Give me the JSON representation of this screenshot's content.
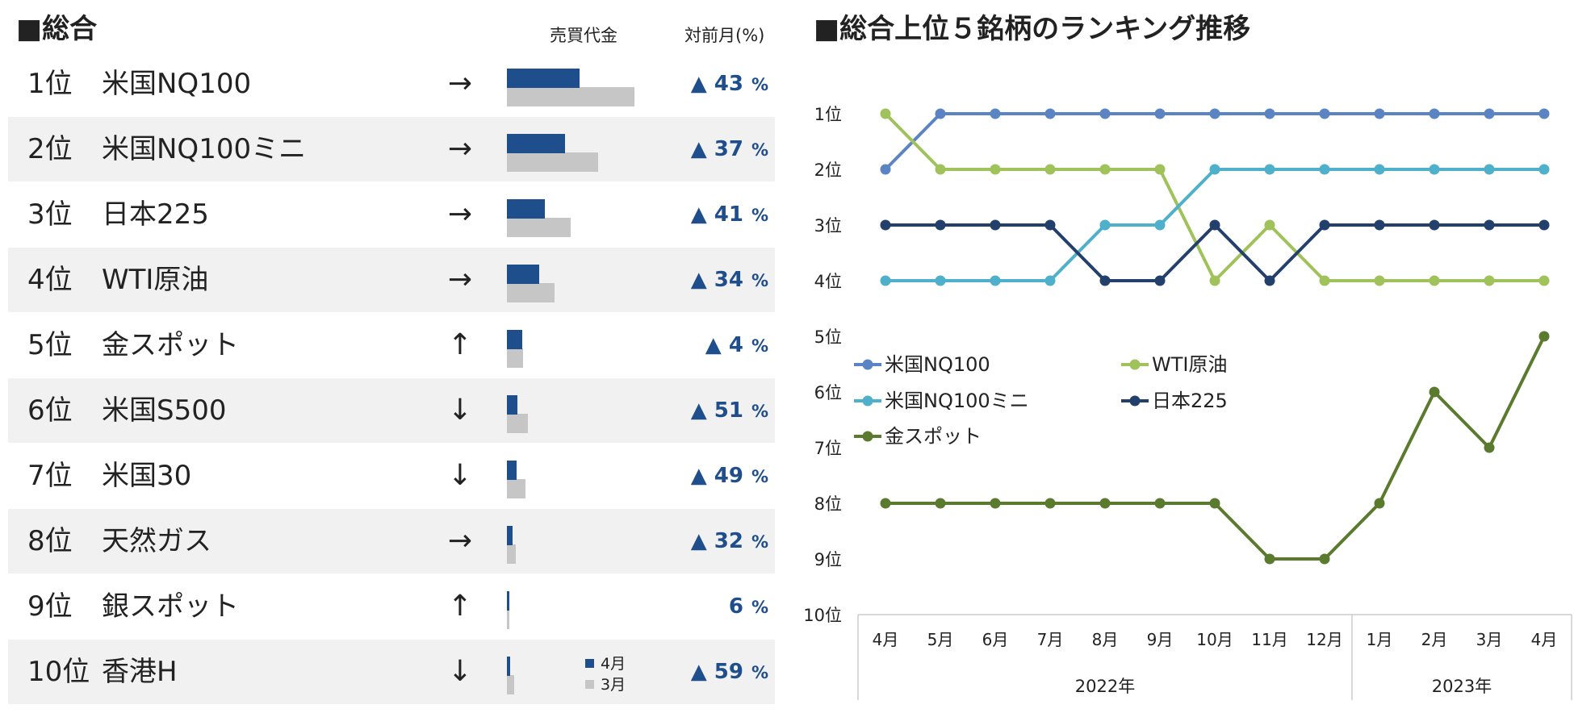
{
  "left_title": "■総合",
  "headers": {
    "amount": "売買代金",
    "change": "対前月(%)"
  },
  "legend_small": {
    "apr": "4月",
    "mar": "3月"
  },
  "ranking": [
    {
      "rank": "1位",
      "name": "米国NQ100",
      "arrow": "→",
      "apr": 1.0,
      "mar": 1.75,
      "up": "▲",
      "change": "43",
      "unit": "%"
    },
    {
      "rank": "2位",
      "name": "米国NQ100ミニ",
      "arrow": "→",
      "apr": 0.8,
      "mar": 1.26,
      "up": "▲",
      "change": "37",
      "unit": "%"
    },
    {
      "rank": "3位",
      "name": "日本225",
      "arrow": "→",
      "apr": 0.52,
      "mar": 0.88,
      "up": "▲",
      "change": "41",
      "unit": "%"
    },
    {
      "rank": "4位",
      "name": "WTI原油",
      "arrow": "→",
      "apr": 0.44,
      "mar": 0.66,
      "up": "▲",
      "change": "34",
      "unit": "%"
    },
    {
      "rank": "5位",
      "name": "金スポット",
      "arrow": "↑",
      "apr": 0.21,
      "mar": 0.22,
      "up": "▲",
      "change": "4",
      "unit": "%"
    },
    {
      "rank": "6位",
      "name": "米国S500",
      "arrow": "↓",
      "apr": 0.14,
      "mar": 0.29,
      "up": "▲",
      "change": "51",
      "unit": "%"
    },
    {
      "rank": "7位",
      "name": "米国30",
      "arrow": "↓",
      "apr": 0.13,
      "mar": 0.25,
      "up": "▲",
      "change": "49",
      "unit": "%"
    },
    {
      "rank": "8位",
      "name": "天然ガス",
      "arrow": "→",
      "apr": 0.08,
      "mar": 0.12,
      "up": "▲",
      "change": "32",
      "unit": "%"
    },
    {
      "rank": "9位",
      "name": "銀スポット",
      "arrow": "↑",
      "apr": 0.03,
      "mar": 0.03,
      "up": "",
      "change": "6",
      "unit": "%"
    },
    {
      "rank": "10位",
      "name": "香港H",
      "arrow": "↓",
      "apr": 0.04,
      "mar": 0.1,
      "up": "▲",
      "change": "59",
      "unit": "%"
    }
  ],
  "chart_data": {
    "type": "line",
    "title": "■総合上位５銘柄のランキング推移",
    "categories": [
      "4月",
      "5月",
      "6月",
      "7月",
      "8月",
      "9月",
      "10月",
      "11月",
      "12月",
      "1月",
      "2月",
      "3月",
      "4月"
    ],
    "year_groups": [
      {
        "label": "2022年",
        "count": 9
      },
      {
        "label": "2023年",
        "count": 4
      }
    ],
    "y_ticks": [
      "1位",
      "2位",
      "3位",
      "4位",
      "5位",
      "6位",
      "7位",
      "8位",
      "9位",
      "10位"
    ],
    "ylim": [
      1,
      10
    ],
    "y_inverted": true,
    "series": [
      {
        "name": "米国NQ100",
        "color": "#5a84c4",
        "values": [
          2,
          1,
          1,
          1,
          1,
          1,
          1,
          1,
          1,
          1,
          1,
          1,
          1
        ]
      },
      {
        "name": "WTI原油",
        "color": "#9fc25a",
        "values": [
          1,
          2,
          2,
          2,
          2,
          2,
          4,
          3,
          4,
          4,
          4,
          4,
          4
        ]
      },
      {
        "name": "米国NQ100ミニ",
        "color": "#4fb0cc",
        "values": [
          4,
          4,
          4,
          4,
          3,
          3,
          2,
          2,
          2,
          2,
          2,
          2,
          2
        ]
      },
      {
        "name": "日本225",
        "color": "#23406c",
        "values": [
          3,
          3,
          3,
          3,
          4,
          4,
          3,
          4,
          3,
          3,
          3,
          3,
          3
        ]
      },
      {
        "name": "金スポット",
        "color": "#5a7a2e",
        "values": [
          8,
          8,
          8,
          8,
          8,
          8,
          8,
          9,
          9,
          8,
          6,
          7,
          5
        ]
      }
    ],
    "legend_position": "center-left"
  },
  "colors": {
    "apr_bar": "#1f4e8c",
    "mar_bar": "#c6c6c6",
    "row_alt": "#f1f1f1",
    "axis": "#cccccc"
  }
}
